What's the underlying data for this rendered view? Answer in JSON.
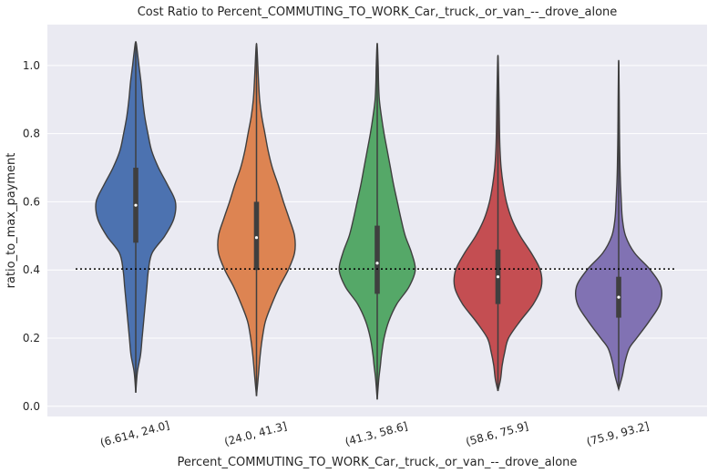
{
  "chart_data": {
    "type": "violin",
    "title": "Cost Ratio to Percent_COMMUTING_TO_WORK_Car,_truck,_or_van_--_drove_alone",
    "xlabel": "Percent_COMMUTING_TO_WORK_Car,_truck,_or_van_--_drove_alone",
    "ylabel": "ratio_to_max_payment",
    "ylim": [
      -0.03,
      1.12
    ],
    "yticks": [
      0.0,
      0.2,
      0.4,
      0.6,
      0.8,
      1.0
    ],
    "ytick_labels": [
      "0.0",
      "0.2",
      "0.4",
      "0.6",
      "0.8",
      "1.0"
    ],
    "grid": true,
    "reference_line": {
      "y": 0.403,
      "style": "dotted",
      "color": "#000000"
    },
    "categories": [
      "(6.614, 24.0]",
      "(24.0, 41.3]",
      "(41.3, 58.6]",
      "(58.6, 75.9]",
      "(75.9, 93.2]"
    ],
    "series": [
      {
        "color": "#4c72b0",
        "min": 0.04,
        "q1": 0.48,
        "median": 0.59,
        "q3": 0.7,
        "max": 1.07,
        "density": [
          [
            0.04,
            0.0
          ],
          [
            0.1,
            0.03
          ],
          [
            0.15,
            0.09
          ],
          [
            0.2,
            0.12
          ],
          [
            0.25,
            0.15
          ],
          [
            0.3,
            0.18
          ],
          [
            0.35,
            0.21
          ],
          [
            0.4,
            0.24
          ],
          [
            0.45,
            0.31
          ],
          [
            0.5,
            0.55
          ],
          [
            0.55,
            0.72
          ],
          [
            0.6,
            0.75
          ],
          [
            0.65,
            0.6
          ],
          [
            0.7,
            0.43
          ],
          [
            0.75,
            0.3
          ],
          [
            0.8,
            0.23
          ],
          [
            0.85,
            0.17
          ],
          [
            0.9,
            0.13
          ],
          [
            0.95,
            0.1
          ],
          [
            1.0,
            0.06
          ],
          [
            1.04,
            0.03
          ],
          [
            1.07,
            0.0
          ]
        ]
      },
      {
        "color": "#dd8452",
        "min": 0.03,
        "q1": 0.4,
        "median": 0.495,
        "q3": 0.6,
        "max": 1.065,
        "density": [
          [
            0.03,
            0.0
          ],
          [
            0.08,
            0.03
          ],
          [
            0.15,
            0.07
          ],
          [
            0.2,
            0.11
          ],
          [
            0.25,
            0.17
          ],
          [
            0.3,
            0.29
          ],
          [
            0.35,
            0.43
          ],
          [
            0.4,
            0.6
          ],
          [
            0.45,
            0.72
          ],
          [
            0.5,
            0.72
          ],
          [
            0.55,
            0.62
          ],
          [
            0.6,
            0.51
          ],
          [
            0.65,
            0.41
          ],
          [
            0.7,
            0.3
          ],
          [
            0.75,
            0.22
          ],
          [
            0.8,
            0.16
          ],
          [
            0.85,
            0.1
          ],
          [
            0.9,
            0.06
          ],
          [
            0.95,
            0.04
          ],
          [
            1.0,
            0.025
          ],
          [
            1.065,
            0.0
          ]
        ]
      },
      {
        "color": "#55a868",
        "min": 0.02,
        "q1": 0.33,
        "median": 0.42,
        "q3": 0.53,
        "max": 1.065,
        "density": [
          [
            0.02,
            0.0
          ],
          [
            0.08,
            0.03
          ],
          [
            0.12,
            0.06
          ],
          [
            0.15,
            0.08
          ],
          [
            0.2,
            0.13
          ],
          [
            0.25,
            0.22
          ],
          [
            0.3,
            0.37
          ],
          [
            0.35,
            0.6
          ],
          [
            0.4,
            0.72
          ],
          [
            0.45,
            0.65
          ],
          [
            0.5,
            0.53
          ],
          [
            0.55,
            0.45
          ],
          [
            0.6,
            0.38
          ],
          [
            0.65,
            0.31
          ],
          [
            0.7,
            0.25
          ],
          [
            0.75,
            0.19
          ],
          [
            0.8,
            0.13
          ],
          [
            0.85,
            0.08
          ],
          [
            0.9,
            0.04
          ],
          [
            0.95,
            0.025
          ],
          [
            1.0,
            0.018
          ],
          [
            1.065,
            0.0
          ]
        ]
      },
      {
        "color": "#c44e52",
        "min": 0.045,
        "q1": 0.3,
        "median": 0.38,
        "q3": 0.46,
        "max": 1.03,
        "density": [
          [
            0.045,
            0.0
          ],
          [
            0.08,
            0.05
          ],
          [
            0.12,
            0.08
          ],
          [
            0.16,
            0.13
          ],
          [
            0.2,
            0.2
          ],
          [
            0.25,
            0.42
          ],
          [
            0.3,
            0.67
          ],
          [
            0.35,
            0.82
          ],
          [
            0.4,
            0.8
          ],
          [
            0.45,
            0.63
          ],
          [
            0.5,
            0.42
          ],
          [
            0.55,
            0.26
          ],
          [
            0.6,
            0.16
          ],
          [
            0.65,
            0.1
          ],
          [
            0.7,
            0.06
          ],
          [
            0.75,
            0.04
          ],
          [
            0.8,
            0.03
          ],
          [
            0.9,
            0.02
          ],
          [
            1.03,
            0.0
          ]
        ]
      },
      {
        "color": "#8172b3",
        "min": 0.05,
        "q1": 0.26,
        "median": 0.32,
        "q3": 0.38,
        "max": 1.015,
        "density": [
          [
            0.05,
            0.0
          ],
          [
            0.09,
            0.07
          ],
          [
            0.13,
            0.12
          ],
          [
            0.17,
            0.2
          ],
          [
            0.2,
            0.34
          ],
          [
            0.25,
            0.58
          ],
          [
            0.3,
            0.78
          ],
          [
            0.35,
            0.8
          ],
          [
            0.4,
            0.6
          ],
          [
            0.45,
            0.3
          ],
          [
            0.5,
            0.13
          ],
          [
            0.55,
            0.07
          ],
          [
            0.6,
            0.05
          ],
          [
            0.65,
            0.035
          ],
          [
            0.7,
            0.025
          ],
          [
            0.8,
            0.015
          ],
          [
            0.9,
            0.01
          ],
          [
            1.015,
            0.0
          ]
        ]
      }
    ]
  }
}
